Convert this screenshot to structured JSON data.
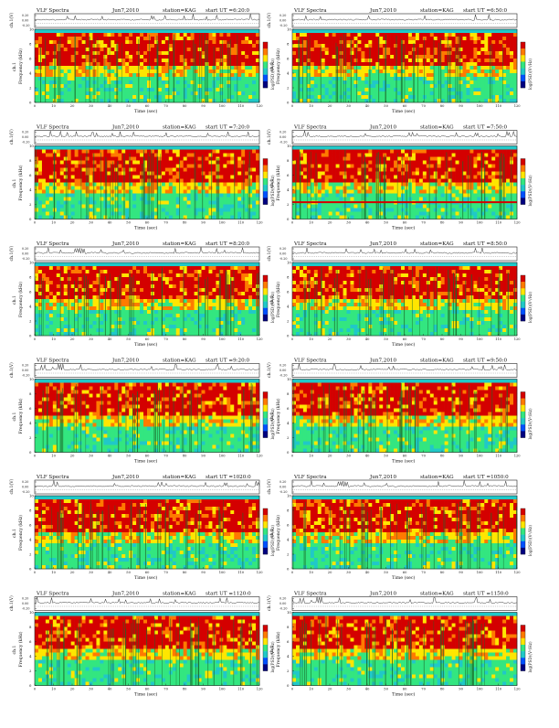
{
  "common": {
    "panel_title": "VLF Spectra",
    "date": "Jun7,2010",
    "station": "station=KAG",
    "start_prefix": "start  UT =",
    "x_label": "Time  (sec)",
    "y_label_top": "ch.1",
    "y_label_freq": "Frequency  (kHz)",
    "cb_label": "log(PSD)(V²/Hz)",
    "top_unit": "ch.1(V)"
  },
  "panels": [
    {
      "start": "6:20:0",
      "band": "",
      "show_title": true
    },
    {
      "start": "6:50:0",
      "band": "",
      "show_title": true
    },
    {
      "start": "7:20:0",
      "band": "",
      "show_title": true
    },
    {
      "start": "7:50:0",
      "band": "2.3",
      "show_title": true
    },
    {
      "start": "8:20:0",
      "band": "",
      "show_title": true
    },
    {
      "start": "8:50:0",
      "band": "",
      "show_title": true
    },
    {
      "start": "9:20:0",
      "band": "",
      "show_title": true
    },
    {
      "start": "9:50:0",
      "band": "",
      "show_title": true
    },
    {
      "start": "1020:0",
      "band": "",
      "show_title": true
    },
    {
      "start": "1050:0",
      "band": "",
      "show_title": true
    },
    {
      "start": "1120:0",
      "band": "",
      "show_title": true
    },
    {
      "start": "1150:0",
      "band": "",
      "show_title": true
    }
  ],
  "chart_data": {
    "type": "heatmap",
    "x_ticks": [
      "0",
      "10",
      "20",
      "30",
      "40",
      "50",
      "60",
      "70",
      "80",
      "90",
      "100",
      "110",
      "120"
    ],
    "y_ticks": [
      "0",
      "2",
      "4",
      "6",
      "8",
      "10"
    ],
    "top_y_ticks": [
      "0.20",
      "0.00",
      "-0.20"
    ],
    "xlim": [
      0,
      120
    ],
    "ylim": [
      0,
      10
    ],
    "colorbar_colors": [
      "#d40000",
      "#ff7a00",
      "#ffe600",
      "#33e680",
      "#20c8c8",
      "#0050ff",
      "#000080"
    ]
  }
}
